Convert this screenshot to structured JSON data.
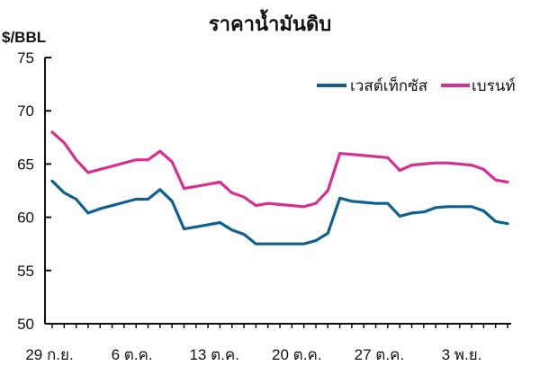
{
  "chart_data": {
    "type": "line",
    "title": "ราคาน้ำมันดิบ",
    "ylabel": "$/BBL",
    "xlabel": "",
    "ylim": [
      50,
      75
    ],
    "y_ticks": [
      50,
      55,
      60,
      65,
      70,
      75
    ],
    "x_tick_labels": [
      "29 ก.ย.",
      "6 ต.ค.",
      "13 ต.ค.",
      "20 ต.ค.",
      "27 ต.ค.",
      "3 พ.ย."
    ],
    "x_tick_index": [
      0,
      5,
      10,
      15,
      20,
      25
    ],
    "grid": false,
    "legend_position": "top-right",
    "series": [
      {
        "name": "เวสต์เท็กซัส",
        "color": "#0f5f8f",
        "values": [
          63.4,
          62.3,
          61.7,
          60.4,
          60.8,
          61.1,
          61.4,
          61.7,
          61.7,
          62.6,
          61.5,
          58.9,
          59.1,
          59.3,
          59.5,
          58.8,
          58.4,
          57.5,
          57.5,
          57.5,
          57.5,
          57.5,
          57.8,
          58.5,
          61.8,
          61.5,
          61.4,
          61.3,
          61.3,
          60.1,
          60.4,
          60.5,
          60.9,
          61.0,
          61.0,
          61.0,
          60.6,
          59.6,
          59.4
        ]
      },
      {
        "name": "เบรนท์",
        "color": "#d63092",
        "values": [
          68.0,
          67.0,
          65.4,
          64.2,
          64.5,
          64.8,
          65.1,
          65.4,
          65.4,
          66.2,
          65.2,
          62.7,
          62.9,
          63.1,
          63.3,
          62.3,
          61.9,
          61.1,
          61.3,
          61.2,
          61.1,
          61.0,
          61.3,
          62.5,
          66.0,
          65.9,
          65.8,
          65.7,
          65.6,
          64.4,
          64.9,
          65.0,
          65.1,
          65.1,
          65.0,
          64.9,
          64.5,
          63.5,
          63.3
        ]
      }
    ]
  },
  "colors": {
    "axis": "#111111",
    "background": "#ffffff"
  }
}
